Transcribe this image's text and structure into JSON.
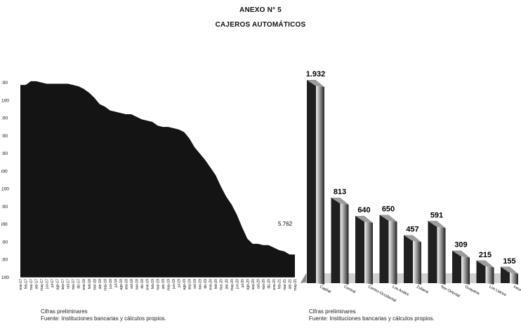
{
  "header": {
    "annex": "ANEXO N° 5",
    "title": "CAJEROS AUTOMÁTICOS"
  },
  "chart_data": [
    {
      "type": "area",
      "color": "#141414",
      "y_tick_labels": [
        ":00",
        "100",
        ":00",
        ":00",
        ":00",
        "i00",
        "100",
        ":00",
        "i00",
        ":00",
        ":00",
        "100"
      ],
      "x": [
        "ene-17",
        "feb-17",
        "mar-17",
        "abr-17",
        "may-17",
        "jun-17",
        "jul-17",
        "ago-17",
        "sep-17",
        "oct-17",
        "nov-17",
        "dic-17",
        "ene-18",
        "feb-18",
        "mar-18",
        "abr-18",
        "may-18",
        "jun-18",
        "jul-18",
        "ago-18",
        "sep-18",
        "oct-18",
        "nov-18",
        "dic-18",
        "ene-19",
        "feb-19",
        "mar-19",
        "abr-19",
        "may-19",
        "jun-19",
        "jul-19",
        "ago-19",
        "sep-19",
        "oct-19",
        "nov-19",
        "dic-19",
        "ene-20",
        "feb-20",
        "mar-20",
        "abr-20",
        "may-20",
        "jun-20",
        "jul-20",
        "ago-20",
        "sep-20",
        "oct-20",
        "nov-20",
        "dic-20",
        "ene-21",
        "feb-21",
        "mar-21",
        "abr-21",
        "may-21"
      ],
      "values": [
        19100,
        19100,
        19400,
        19400,
        19300,
        19200,
        19200,
        19200,
        19200,
        19200,
        19100,
        19000,
        18800,
        18500,
        18100,
        17600,
        17400,
        17100,
        17000,
        16900,
        16800,
        16800,
        16600,
        16400,
        16300,
        16200,
        15900,
        15800,
        15800,
        15700,
        15600,
        15400,
        14900,
        14200,
        13700,
        13200,
        12600,
        12000,
        11100,
        10300,
        9700,
        8900,
        7900,
        7000,
        6600,
        6600,
        6500,
        6500,
        6300,
        6100,
        6000,
        5762,
        5762
      ],
      "annotation": "5.762",
      "notes": [
        "Cifras preliminares",
        "Fuente: Instituciones bancarias y cálculos propios."
      ]
    },
    {
      "type": "bar",
      "categories": [
        "Capital",
        "Central",
        "Centro-Occidental",
        "Los Andes",
        "Zuliana",
        "Nor-Oriental",
        "Guayana",
        "Los Llanos",
        "Insular"
      ],
      "category_labels": [
        "Capital",
        "Central",
        "Centro-Occidental",
        "Los Andes",
        "Zuliana",
        "Nor-Oriental",
        "Guayana",
        "Los Llanos",
        "Insul"
      ],
      "values": [
        1932,
        813,
        640,
        650,
        457,
        591,
        309,
        215,
        155
      ],
      "value_labels": [
        "1.932",
        "813",
        "640",
        "650",
        "457",
        "591",
        "309",
        "215",
        "155"
      ],
      "notes": [
        "Cifras preliminares",
        "Fuente: Instituciones bancarias y cálculos propios."
      ]
    }
  ]
}
